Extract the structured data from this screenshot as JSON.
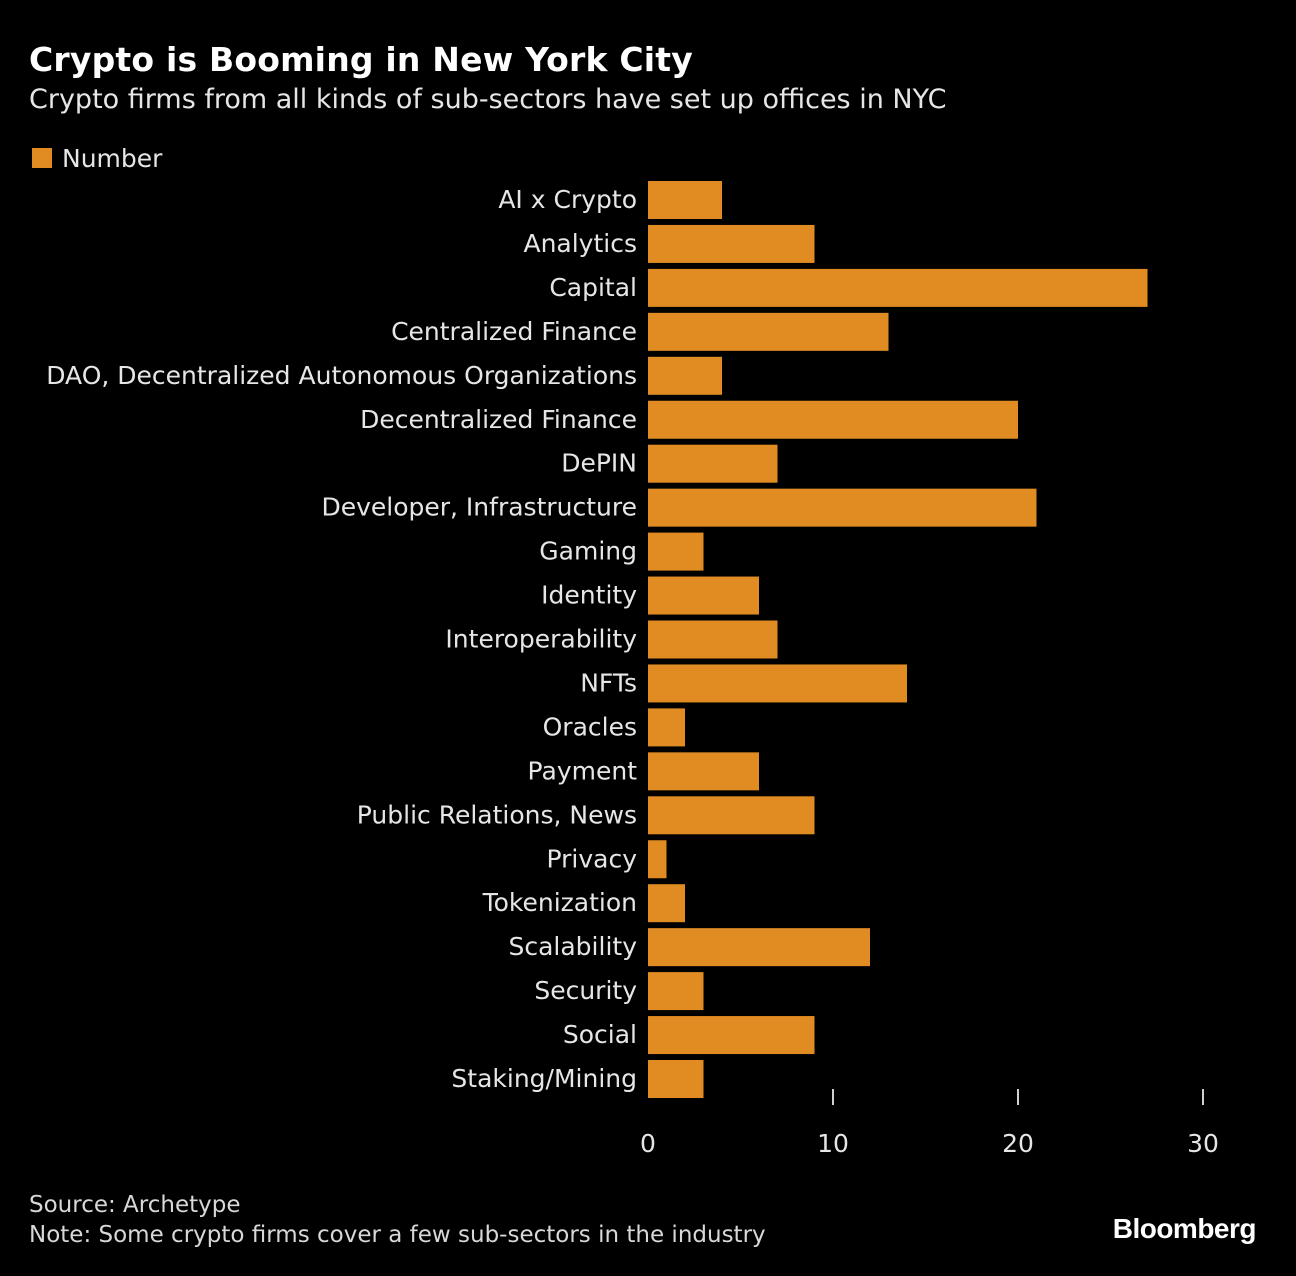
{
  "header": {
    "title": "Crypto is Booming in New York City",
    "subtitle": "Crypto firms from all kinds of sub-sectors have set up offices in NYC"
  },
  "legend": {
    "label": "Number",
    "color": "#e08c22"
  },
  "chart_data": {
    "type": "bar",
    "orientation": "horizontal",
    "title": "Crypto is Booming in New York City",
    "subtitle": "Crypto firms from all kinds of sub-sectors have set up offices in NYC",
    "categories": [
      "AI x Crypto",
      "Analytics",
      "Capital",
      "Centralized Finance",
      "DAO, Decentralized Autonomous Organizations",
      "Decentralized Finance",
      "DePIN",
      "Developer, Infrastructure",
      "Gaming",
      "Identity",
      "Interoperability",
      "NFTs",
      "Oracles",
      "Payment",
      "Public Relations, News",
      "Privacy",
      "Tokenization",
      "Scalability",
      "Security",
      "Social",
      "Staking/Mining"
    ],
    "series": [
      {
        "name": "Number",
        "values": [
          4,
          9,
          27,
          13,
          4,
          20,
          7,
          21,
          3,
          6,
          7,
          14,
          2,
          6,
          9,
          1,
          2,
          12,
          3,
          9,
          3
        ]
      }
    ],
    "xlim": [
      0,
      30
    ],
    "xticks": [
      "0",
      "10",
      "20",
      "30"
    ],
    "grid": false,
    "legend_position": "top-left",
    "bar_color": "#e08c22",
    "text_color": "#e6e6e6",
    "background": "#000000"
  },
  "footer": {
    "source": "Source: Archetype",
    "note": "Note: Some crypto firms cover a few sub-sectors in the industry",
    "logo": "Bloomberg"
  }
}
